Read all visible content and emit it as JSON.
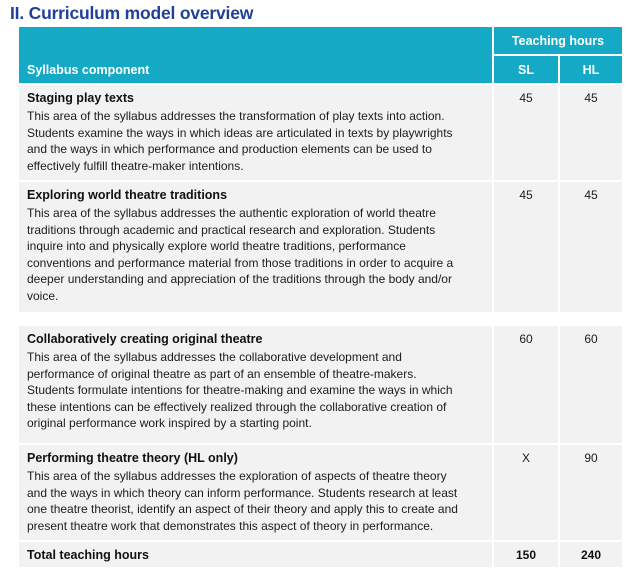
{
  "page": {
    "title": "II. Curriculum model overview"
  },
  "colors": {
    "teal": "#14a9c4",
    "row_bg": "#f2f2f3",
    "title_blue": "#21409a",
    "text_dark": "#1c1c1c"
  },
  "table": {
    "header": {
      "component": "Syllabus component",
      "group": "Teaching hours",
      "col_sl": "SL",
      "col_hl": "HL"
    },
    "rows": [
      {
        "title": "Staging play texts",
        "description": "This area of the syllabus addresses the transformation of play texts into action. Students examine the ways in which ideas are articulated in texts by playwrights and the ways in which performance and production elements can be used to effectively fulfill theatre-maker intentions.",
        "sl": "45",
        "hl": "45"
      },
      {
        "title": "Exploring world theatre traditions",
        "description": "This area of the syllabus addresses the authentic exploration of world theatre traditions through academic and practical research and exploration. Students inquire into and physically explore world theatre traditions, performance conventions and performance material from those traditions in order to acquire a deeper understanding and appreciation of the traditions through the body and/or voice.",
        "sl": "45",
        "hl": "45"
      },
      {
        "title": "Collaboratively creating original theatre",
        "description": "This area of the syllabus addresses the collaborative development and performance of original theatre as part of an ensemble of theatre-makers. Students formulate intentions for theatre-making and examine the ways in which these intentions can be effectively realized through the collaborative creation of original performance work inspired by a starting point.",
        "sl": "60",
        "hl": "60"
      },
      {
        "title": "Performing theatre theory (HL only)",
        "description": "This area of the syllabus addresses the exploration of aspects of theatre theory and the ways in which theory can inform performance. Students research at least one theatre theorist, identify an aspect of their theory and apply this to create and present theatre work that demonstrates this aspect of theory in performance.",
        "sl": "X",
        "hl": "90"
      }
    ],
    "total": {
      "label": "Total teaching hours",
      "sl": "150",
      "hl": "240"
    }
  }
}
